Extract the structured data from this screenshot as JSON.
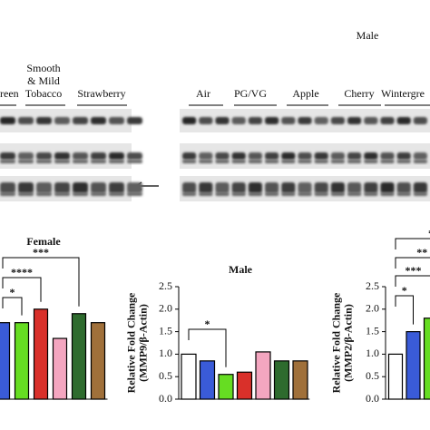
{
  "blot": {
    "header": "Male",
    "left_labels": [
      [
        "reen"
      ],
      [
        "Smooth",
        "& Mild",
        "Tobacco"
      ],
      [
        "Strawberry"
      ]
    ],
    "right_labels": [
      [
        "Air"
      ],
      [
        "PG/VG"
      ],
      [
        "Apple"
      ],
      [
        "Cherry"
      ],
      [
        "Wintergre"
      ]
    ]
  },
  "chart_data": [
    {
      "type": "bar",
      "title": "Female",
      "categories": [
        null,
        null,
        null,
        null,
        null,
        null
      ],
      "values": [
        1.7,
        1.7,
        2.0,
        1.35,
        1.9,
        1.7
      ],
      "colors": [
        "#3a5bd8",
        "#66dd22",
        "#d9302a",
        "#f4a6c0",
        "#2e6b2e",
        "#a0703a"
      ],
      "ylim": [
        0,
        2.5
      ],
      "annotations": [
        "*",
        "****",
        "***"
      ]
    },
    {
      "type": "bar",
      "title": "Male",
      "y_label": [
        "Relative Fold Change",
        "(MMP9/β-Actin)"
      ],
      "categories": [
        null,
        null,
        null,
        null,
        null,
        null,
        null
      ],
      "values": [
        1.0,
        0.85,
        0.55,
        0.6,
        1.05,
        0.85,
        0.85
      ],
      "colors": [
        "#ffffff",
        "#3a5bd8",
        "#66dd22",
        "#d9302a",
        "#f4a6c0",
        "#2e6b2e",
        "#a0703a"
      ],
      "ylim": [
        0,
        2.5
      ],
      "yticks": [
        {
          "value": 0,
          "label": "0.0"
        },
        {
          "value": 0.5,
          "label": "0.5"
        },
        {
          "value": 1,
          "label": "1.0"
        },
        {
          "value": 1.5,
          "label": "1.5"
        },
        {
          "value": 2,
          "label": "2.0"
        },
        {
          "value": 2.5,
          "label": "2.5"
        }
      ],
      "annotations": [
        "*"
      ]
    },
    {
      "type": "bar",
      "y_label": [
        "Relative Fold Change",
        "(MMP2/β-Actin)"
      ],
      "categories": [
        null,
        null,
        null
      ],
      "values": [
        1.0,
        1.5,
        1.8
      ],
      "colors": [
        "#ffffff",
        "#3a5bd8",
        "#66dd22"
      ],
      "ylim": [
        0,
        2.5
      ],
      "yticks": [
        {
          "value": 0,
          "label": "0.0"
        },
        {
          "value": 0.5,
          "label": "0.5"
        },
        {
          "value": 1,
          "label": "1.0"
        },
        {
          "value": 1.5,
          "label": "1.5"
        },
        {
          "value": 2,
          "label": "2.0"
        },
        {
          "value": 2.5,
          "label": "2.5"
        }
      ],
      "annotations": [
        "*",
        "***",
        "**",
        "*"
      ]
    }
  ]
}
